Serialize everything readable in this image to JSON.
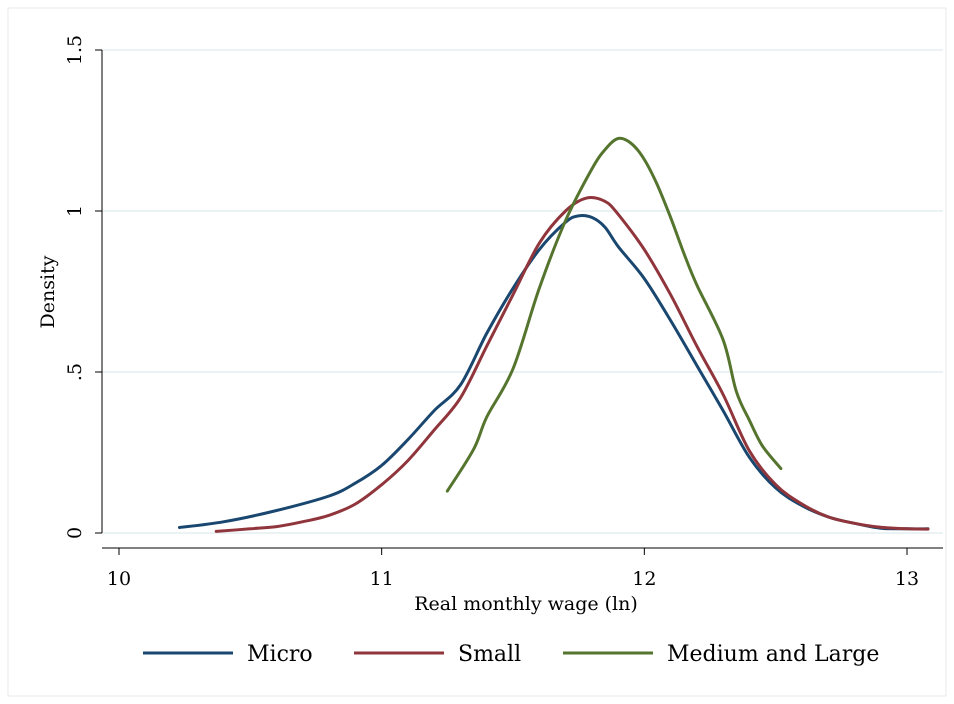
{
  "chart_data": {
    "type": "line",
    "xlabel": "Real monthly wage (ln)",
    "ylabel": "Density",
    "xlim": [
      10,
      13.13
    ],
    "ylim": [
      0,
      1.5
    ],
    "x_ticks": [
      10,
      11,
      12,
      13
    ],
    "x_tick_labels": [
      "10",
      "11",
      "12",
      "13"
    ],
    "y_ticks": [
      0,
      0.5,
      1,
      1.5
    ],
    "y_tick_labels": [
      "0",
      ".5",
      "1",
      "1.5"
    ],
    "grid": true,
    "legend_position": "bottom",
    "series": [
      {
        "name": "Micro",
        "color": "#1a476f",
        "points": [
          [
            10.23,
            0.017
          ],
          [
            10.4,
            0.035
          ],
          [
            10.6,
            0.07
          ],
          [
            10.8,
            0.115
          ],
          [
            10.9,
            0.155
          ],
          [
            11.0,
            0.21
          ],
          [
            11.1,
            0.29
          ],
          [
            11.2,
            0.38
          ],
          [
            11.3,
            0.46
          ],
          [
            11.4,
            0.62
          ],
          [
            11.5,
            0.76
          ],
          [
            11.6,
            0.88
          ],
          [
            11.7,
            0.965
          ],
          [
            11.75,
            0.985
          ],
          [
            11.8,
            0.98
          ],
          [
            11.85,
            0.95
          ],
          [
            11.9,
            0.89
          ],
          [
            12.0,
            0.79
          ],
          [
            12.1,
            0.66
          ],
          [
            12.2,
            0.52
          ],
          [
            12.3,
            0.38
          ],
          [
            12.4,
            0.235
          ],
          [
            12.5,
            0.14
          ],
          [
            12.6,
            0.085
          ],
          [
            12.7,
            0.05
          ],
          [
            12.8,
            0.03
          ],
          [
            12.9,
            0.015
          ],
          [
            13.0,
            0.013
          ],
          [
            13.08,
            0.013
          ]
        ]
      },
      {
        "name": "Small",
        "color": "#90353b",
        "points": [
          [
            10.37,
            0.005
          ],
          [
            10.5,
            0.013
          ],
          [
            10.6,
            0.02
          ],
          [
            10.7,
            0.035
          ],
          [
            10.8,
            0.055
          ],
          [
            10.9,
            0.09
          ],
          [
            11.0,
            0.15
          ],
          [
            11.1,
            0.225
          ],
          [
            11.2,
            0.32
          ],
          [
            11.3,
            0.42
          ],
          [
            11.4,
            0.58
          ],
          [
            11.5,
            0.74
          ],
          [
            11.6,
            0.9
          ],
          [
            11.7,
            1.0
          ],
          [
            11.78,
            1.04
          ],
          [
            11.85,
            1.03
          ],
          [
            11.9,
            0.99
          ],
          [
            12.0,
            0.88
          ],
          [
            12.1,
            0.74
          ],
          [
            12.2,
            0.58
          ],
          [
            12.3,
            0.43
          ],
          [
            12.4,
            0.255
          ],
          [
            12.5,
            0.15
          ],
          [
            12.6,
            0.09
          ],
          [
            12.7,
            0.05
          ],
          [
            12.8,
            0.03
          ],
          [
            12.9,
            0.018
          ],
          [
            13.0,
            0.013
          ],
          [
            13.08,
            0.012
          ]
        ]
      },
      {
        "name": "Medium and Large",
        "color": "#55752f",
        "points": [
          [
            11.25,
            0.13
          ],
          [
            11.35,
            0.26
          ],
          [
            11.4,
            0.36
          ],
          [
            11.5,
            0.51
          ],
          [
            11.6,
            0.76
          ],
          [
            11.7,
            0.97
          ],
          [
            11.8,
            1.13
          ],
          [
            11.85,
            1.19
          ],
          [
            11.9,
            1.225
          ],
          [
            11.95,
            1.21
          ],
          [
            12.0,
            1.16
          ],
          [
            12.05,
            1.08
          ],
          [
            12.1,
            0.98
          ],
          [
            12.15,
            0.87
          ],
          [
            12.2,
            0.77
          ],
          [
            12.3,
            0.6
          ],
          [
            12.35,
            0.44
          ],
          [
            12.4,
            0.35
          ],
          [
            12.45,
            0.27
          ],
          [
            12.52,
            0.2
          ]
        ]
      }
    ]
  }
}
